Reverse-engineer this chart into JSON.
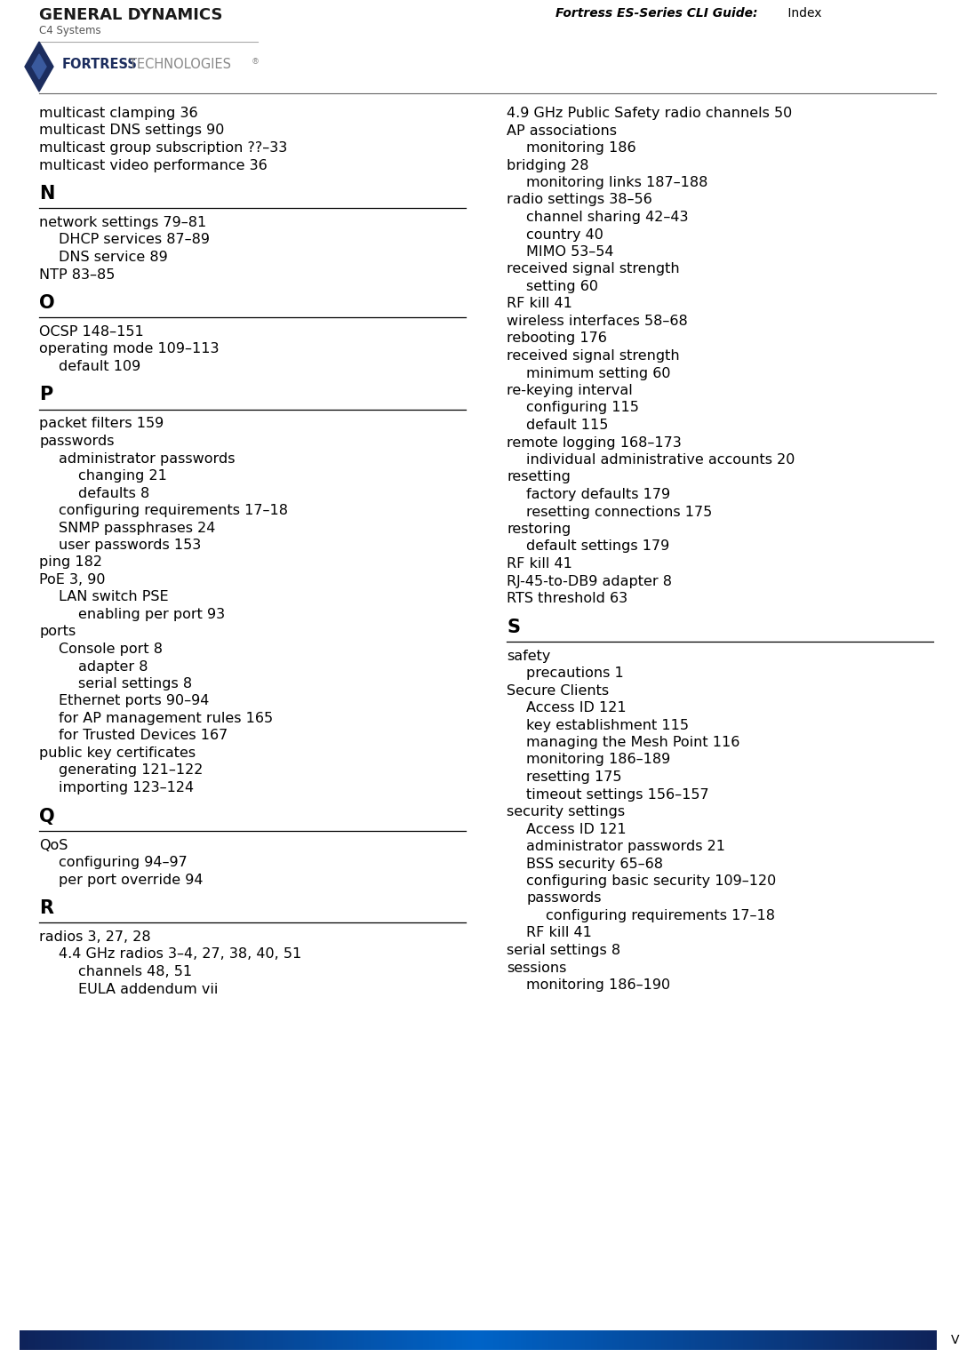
{
  "header_title_italic": "Fortress ES-Series CLI Guide:",
  "header_title_normal": " Index",
  "page_label": "V",
  "left_column_lines": [
    {
      "text": "multicast clamping 36",
      "indent": 0,
      "type": "normal"
    },
    {
      "text": "multicast DNS settings 90",
      "indent": 0,
      "type": "normal"
    },
    {
      "text": "multicast group subscription ??–33",
      "indent": 0,
      "type": "normal"
    },
    {
      "text": "multicast video performance 36",
      "indent": 0,
      "type": "normal"
    },
    {
      "text": "N",
      "indent": 0,
      "type": "letter_head"
    },
    {
      "text": "network settings 79–81",
      "indent": 0,
      "type": "normal"
    },
    {
      "text": "DHCP services 87–89",
      "indent": 1,
      "type": "normal"
    },
    {
      "text": "DNS service 89",
      "indent": 1,
      "type": "normal"
    },
    {
      "text": "NTP 83–85",
      "indent": 0,
      "type": "normal"
    },
    {
      "text": "O",
      "indent": 0,
      "type": "letter_head"
    },
    {
      "text": "OCSP 148–151",
      "indent": 0,
      "type": "normal"
    },
    {
      "text": "operating mode 109–113",
      "indent": 0,
      "type": "normal"
    },
    {
      "text": "default 109",
      "indent": 1,
      "type": "normal"
    },
    {
      "text": "P",
      "indent": 0,
      "type": "letter_head"
    },
    {
      "text": "packet filters 159",
      "indent": 0,
      "type": "normal"
    },
    {
      "text": "passwords",
      "indent": 0,
      "type": "normal"
    },
    {
      "text": "administrator passwords",
      "indent": 1,
      "type": "normal"
    },
    {
      "text": "changing 21",
      "indent": 2,
      "type": "normal"
    },
    {
      "text": "defaults 8",
      "indent": 2,
      "type": "normal"
    },
    {
      "text": "configuring requirements 17–18",
      "indent": 1,
      "type": "normal"
    },
    {
      "text": "SNMP passphrases 24",
      "indent": 1,
      "type": "normal"
    },
    {
      "text": "user passwords 153",
      "indent": 1,
      "type": "normal"
    },
    {
      "text": "ping 182",
      "indent": 0,
      "type": "normal"
    },
    {
      "text": "PoE 3, 90",
      "indent": 0,
      "type": "normal"
    },
    {
      "text": "LAN switch PSE",
      "indent": 1,
      "type": "normal"
    },
    {
      "text": "enabling per port 93",
      "indent": 2,
      "type": "normal"
    },
    {
      "text": "ports",
      "indent": 0,
      "type": "normal"
    },
    {
      "text": "Console port 8",
      "indent": 1,
      "type": "normal"
    },
    {
      "text": "adapter 8",
      "indent": 2,
      "type": "normal"
    },
    {
      "text": "serial settings 8",
      "indent": 2,
      "type": "normal"
    },
    {
      "text": "Ethernet ports 90–94",
      "indent": 1,
      "type": "normal"
    },
    {
      "text": "for AP management rules 165",
      "indent": 1,
      "type": "normal"
    },
    {
      "text": "for Trusted Devices 167",
      "indent": 1,
      "type": "normal"
    },
    {
      "text": "public key certificates",
      "indent": 0,
      "type": "normal"
    },
    {
      "text": "generating 121–122",
      "indent": 1,
      "type": "normal"
    },
    {
      "text": "importing 123–124",
      "indent": 1,
      "type": "normal"
    },
    {
      "text": "Q",
      "indent": 0,
      "type": "letter_head"
    },
    {
      "text": "QoS",
      "indent": 0,
      "type": "normal"
    },
    {
      "text": "configuring 94–97",
      "indent": 1,
      "type": "normal"
    },
    {
      "text": "per port override 94",
      "indent": 1,
      "type": "normal"
    },
    {
      "text": "R",
      "indent": 0,
      "type": "letter_head"
    },
    {
      "text": "radios 3, 27, 28",
      "indent": 0,
      "type": "normal"
    },
    {
      "text": "4.4 GHz radios 3–4, 27, 38, 40, 51",
      "indent": 1,
      "type": "normal"
    },
    {
      "text": "channels 48, 51",
      "indent": 2,
      "type": "normal"
    },
    {
      "text": "EULA addendum vii",
      "indent": 2,
      "type": "normal"
    }
  ],
  "right_column_lines": [
    {
      "text": "4.9 GHz Public Safety radio channels 50",
      "indent": 0,
      "type": "normal"
    },
    {
      "text": "AP associations",
      "indent": 0,
      "type": "normal"
    },
    {
      "text": "monitoring 186",
      "indent": 1,
      "type": "normal"
    },
    {
      "text": "bridging 28",
      "indent": 0,
      "type": "normal"
    },
    {
      "text": "monitoring links 187–188",
      "indent": 1,
      "type": "normal"
    },
    {
      "text": "radio settings 38–56",
      "indent": 0,
      "type": "normal"
    },
    {
      "text": "channel sharing 42–43",
      "indent": 1,
      "type": "normal"
    },
    {
      "text": "country 40",
      "indent": 1,
      "type": "normal"
    },
    {
      "text": "MIMO 53–54",
      "indent": 1,
      "type": "normal"
    },
    {
      "text": "received signal strength",
      "indent": 0,
      "type": "normal"
    },
    {
      "text": "setting 60",
      "indent": 1,
      "type": "normal"
    },
    {
      "text": "RF kill 41",
      "indent": 0,
      "type": "normal"
    },
    {
      "text": "wireless interfaces 58–68",
      "indent": 0,
      "type": "normal"
    },
    {
      "text": "rebooting 176",
      "indent": 0,
      "type": "normal"
    },
    {
      "text": "received signal strength",
      "indent": 0,
      "type": "normal"
    },
    {
      "text": "minimum setting 60",
      "indent": 1,
      "type": "normal"
    },
    {
      "text": "re-keying interval",
      "indent": 0,
      "type": "normal"
    },
    {
      "text": "configuring 115",
      "indent": 1,
      "type": "normal"
    },
    {
      "text": "default 115",
      "indent": 1,
      "type": "normal"
    },
    {
      "text": "remote logging 168–173",
      "indent": 0,
      "type": "normal"
    },
    {
      "text": "individual administrative accounts 20",
      "indent": 1,
      "type": "normal"
    },
    {
      "text": "resetting",
      "indent": 0,
      "type": "normal"
    },
    {
      "text": "factory defaults 179",
      "indent": 1,
      "type": "normal"
    },
    {
      "text": "resetting connections 175",
      "indent": 1,
      "type": "normal"
    },
    {
      "text": "restoring",
      "indent": 0,
      "type": "normal"
    },
    {
      "text": "default settings 179",
      "indent": 1,
      "type": "normal"
    },
    {
      "text": "RF kill 41",
      "indent": 0,
      "type": "normal"
    },
    {
      "text": "RJ-45-to-DB9 adapter 8",
      "indent": 0,
      "type": "normal"
    },
    {
      "text": "RTS threshold 63",
      "indent": 0,
      "type": "normal"
    },
    {
      "text": "S",
      "indent": 0,
      "type": "letter_head"
    },
    {
      "text": "safety",
      "indent": 0,
      "type": "normal"
    },
    {
      "text": "precautions 1",
      "indent": 1,
      "type": "normal"
    },
    {
      "text": "Secure Clients",
      "indent": 0,
      "type": "normal"
    },
    {
      "text": "Access ID 121",
      "indent": 1,
      "type": "normal"
    },
    {
      "text": "key establishment 115",
      "indent": 1,
      "type": "normal"
    },
    {
      "text": "managing the Mesh Point 116",
      "indent": 1,
      "type": "normal"
    },
    {
      "text": "monitoring 186–189",
      "indent": 1,
      "type": "normal"
    },
    {
      "text": "resetting 175",
      "indent": 1,
      "type": "normal"
    },
    {
      "text": "timeout settings 156–157",
      "indent": 1,
      "type": "normal"
    },
    {
      "text": "security settings",
      "indent": 0,
      "type": "normal"
    },
    {
      "text": "Access ID 121",
      "indent": 1,
      "type": "normal"
    },
    {
      "text": "administrator passwords 21",
      "indent": 1,
      "type": "normal"
    },
    {
      "text": "BSS security 65–68",
      "indent": 1,
      "type": "normal"
    },
    {
      "text": "configuring basic security 109–120",
      "indent": 1,
      "type": "normal"
    },
    {
      "text": "passwords",
      "indent": 1,
      "type": "normal"
    },
    {
      "text": "configuring requirements 17–18",
      "indent": 2,
      "type": "normal"
    },
    {
      "text": "RF kill 41",
      "indent": 1,
      "type": "normal"
    },
    {
      "text": "serial settings 8",
      "indent": 0,
      "type": "normal"
    },
    {
      "text": "sessions",
      "indent": 0,
      "type": "normal"
    },
    {
      "text": "monitoring 186–190",
      "indent": 1,
      "type": "normal"
    }
  ],
  "bg_color": "#ffffff",
  "text_color": "#000000",
  "letter_head_color": "#000000"
}
